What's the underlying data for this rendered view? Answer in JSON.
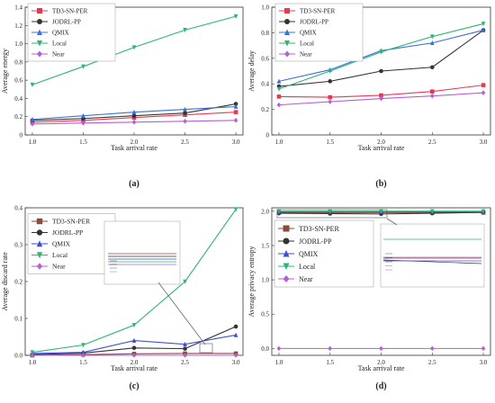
{
  "chart_data": [
    {
      "type": "line",
      "panel_label": "(a)",
      "xlabel": "Task arrival rate",
      "ylabel": "Average energy",
      "x": [
        1.0,
        1.5,
        2.0,
        2.5,
        3.0
      ],
      "xticks": [
        "1.0",
        "1.5",
        "2.0",
        "2.5",
        "3.0"
      ],
      "ylim": [
        0,
        1.4
      ],
      "yticks": [
        "0",
        "0.2",
        "0.4",
        "0.6",
        "0.8",
        "1.0",
        "1.2",
        "1.4"
      ],
      "ytick_values": [
        0,
        0.2,
        0.4,
        0.6,
        0.8,
        1.0,
        1.2,
        1.4
      ],
      "legend_position": "top-left",
      "series": [
        {
          "name": "TD3-SN-PER",
          "color": "#e8384f",
          "marker": "square",
          "values": [
            0.14,
            0.16,
            0.19,
            0.22,
            0.25
          ]
        },
        {
          "name": "JODRL-PP",
          "color": "#333333",
          "marker": "circle",
          "values": [
            0.16,
            0.18,
            0.21,
            0.24,
            0.34
          ]
        },
        {
          "name": "QMIX",
          "color": "#3a6fd6",
          "marker": "triangle",
          "values": [
            0.17,
            0.21,
            0.25,
            0.28,
            0.31
          ]
        },
        {
          "name": "Local",
          "color": "#2bb673",
          "marker": "triangle-down",
          "values": [
            0.55,
            0.75,
            0.96,
            1.15,
            1.3
          ]
        },
        {
          "name": "Near",
          "color": "#b45fd6",
          "marker": "diamond",
          "values": [
            0.12,
            0.13,
            0.14,
            0.15,
            0.16
          ]
        }
      ]
    },
    {
      "type": "line",
      "panel_label": "(b)",
      "xlabel": "Task arrival rate",
      "ylabel": "Average delay",
      "x": [
        1.0,
        1.5,
        2.0,
        2.5,
        3.0
      ],
      "xticks": [
        "1.0",
        "1.5",
        "2.0",
        "2.5",
        "3.0"
      ],
      "ylim": [
        0,
        1.0
      ],
      "yticks": [
        "0",
        "0.2",
        "0.4",
        "0.6",
        "0.8",
        "1.0"
      ],
      "ytick_values": [
        0,
        0.2,
        0.4,
        0.6,
        0.8,
        1.0
      ],
      "legend_position": "top-left",
      "series": [
        {
          "name": "TD3-SN-PER",
          "color": "#e8384f",
          "marker": "square",
          "values": [
            0.3,
            0.295,
            0.31,
            0.34,
            0.39
          ]
        },
        {
          "name": "JODRL-PP",
          "color": "#333333",
          "marker": "circle",
          "values": [
            0.38,
            0.42,
            0.5,
            0.53,
            0.82
          ]
        },
        {
          "name": "QMIX",
          "color": "#3a6fd6",
          "marker": "triangle",
          "values": [
            0.42,
            0.51,
            0.66,
            0.72,
            0.82
          ]
        },
        {
          "name": "Local",
          "color": "#2bb673",
          "marker": "triangle-down",
          "values": [
            0.36,
            0.5,
            0.65,
            0.77,
            0.87
          ]
        },
        {
          "name": "Near",
          "color": "#b45fd6",
          "marker": "diamond",
          "values": [
            0.235,
            0.26,
            0.285,
            0.305,
            0.33
          ]
        }
      ]
    },
    {
      "type": "line",
      "panel_label": "(c)",
      "xlabel": "Task arrival rate",
      "ylabel": "Average discard rate",
      "x": [
        1.0,
        1.5,
        2.0,
        2.5,
        3.0
      ],
      "xticks": [
        "1.0",
        "1.5",
        "2.0",
        "2.5",
        "3.0"
      ],
      "ylim": [
        0,
        0.4
      ],
      "yticks": [
        "0.0",
        "0.1",
        "0.2",
        "0.3",
        "0.4"
      ],
      "ytick_values": [
        0,
        0.1,
        0.2,
        0.3,
        0.4
      ],
      "legend_position": "top-left",
      "series": [
        {
          "name": "TD3-SN-PER",
          "color": "#8b4a3c",
          "marker": "square",
          "values": [
            0.0,
            0.002,
            0.004,
            0.005,
            0.005
          ]
        },
        {
          "name": "JODRL-PP",
          "color": "#333333",
          "marker": "circle",
          "values": [
            0.002,
            0.006,
            0.02,
            0.018,
            0.078
          ]
        },
        {
          "name": "QMIX",
          "color": "#3a4fd6",
          "marker": "triangle",
          "values": [
            0.005,
            0.008,
            0.04,
            0.03,
            0.055
          ]
        },
        {
          "name": "Local",
          "color": "#2bb673",
          "marker": "triangle-down",
          "values": [
            0.008,
            0.028,
            0.082,
            0.2,
            0.396
          ]
        },
        {
          "name": "Near",
          "color": "#b45fd6",
          "marker": "diamond",
          "values": [
            0.0,
            0.0,
            0.0,
            0.0,
            0.0
          ]
        }
      ]
    },
    {
      "type": "line",
      "panel_label": "(d)",
      "xlabel": "Task arrival rate",
      "ylabel": "Average privacy entropy",
      "x": [
        1.0,
        1.5,
        2.0,
        2.5,
        3.0
      ],
      "xticks": [
        "1.0",
        "1.5",
        "2.0",
        "2.5",
        "3.0"
      ],
      "ylim": [
        -0.1,
        2.05
      ],
      "yticks": [
        "0.0",
        "0.5",
        "1.0",
        "1.5",
        "2.0"
      ],
      "ytick_values": [
        0,
        0.5,
        1.0,
        1.5,
        2.0
      ],
      "legend_position": "center-left",
      "series": [
        {
          "name": "TD3-SN-PER",
          "color": "#8b4a3c",
          "marker": "square",
          "values": [
            1.98,
            1.98,
            1.98,
            1.98,
            1.98
          ]
        },
        {
          "name": "JODRL-PP",
          "color": "#333333",
          "marker": "circle",
          "values": [
            1.97,
            1.965,
            1.96,
            1.97,
            1.985
          ]
        },
        {
          "name": "QMIX",
          "color": "#3a4fd6",
          "marker": "triangle",
          "values": [
            1.99,
            1.99,
            1.99,
            1.99,
            1.99
          ]
        },
        {
          "name": "Local",
          "color": "#2bb673",
          "marker": "triangle-down",
          "values": [
            2.0,
            2.0,
            2.0,
            2.0,
            2.0
          ]
        },
        {
          "name": "Near",
          "color": "#b45fd6",
          "marker": "diamond",
          "values": [
            0.0,
            0.0,
            0.0,
            0.0,
            0.0
          ]
        }
      ]
    }
  ]
}
